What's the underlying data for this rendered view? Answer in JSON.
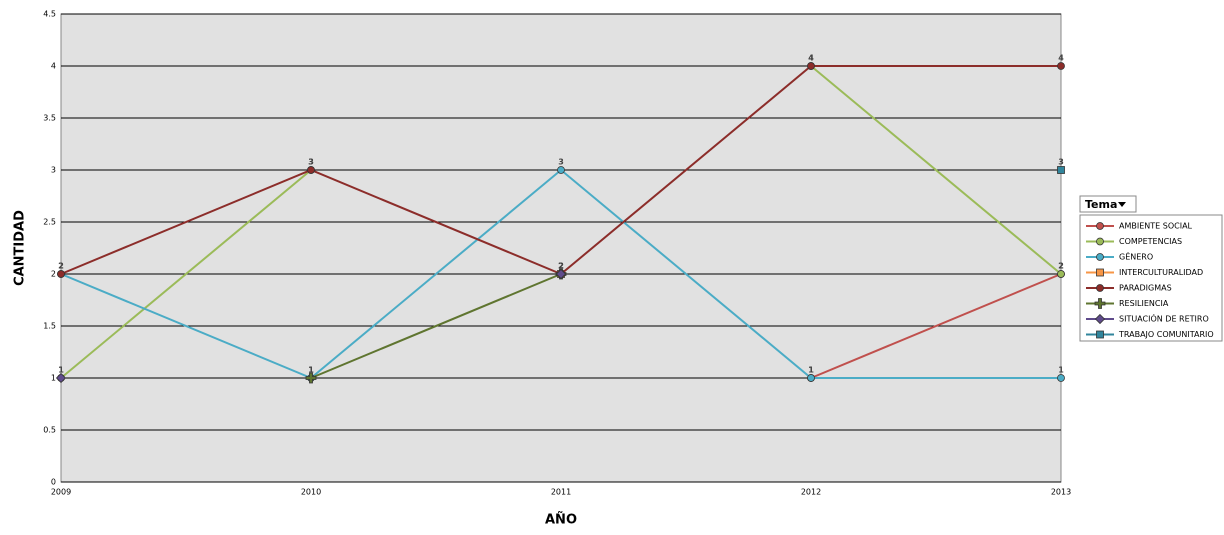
{
  "chart_data": {
    "type": "line",
    "x_label": "AÑO",
    "y_label": "CANTIDAD",
    "legend_title": "Tema",
    "categories": [
      "2009",
      "2010",
      "2011",
      "2012",
      "2013"
    ],
    "ylim": [
      0,
      4.5
    ],
    "yticks": [
      0,
      0.5,
      1,
      1.5,
      2,
      2.5,
      3,
      3.5,
      4,
      4.5
    ],
    "grid": true,
    "series": [
      {
        "name": "AMBIENTE SOCIAL",
        "color": "#c0504d",
        "marker": "circle",
        "values": [
          null,
          null,
          null,
          1,
          2
        ]
      },
      {
        "name": "COMPETENCIAS",
        "color": "#9bbb59",
        "marker": "circle",
        "values": [
          1,
          3,
          null,
          4,
          2
        ]
      },
      {
        "name": "GÉNERO",
        "color": "#4bacc6",
        "marker": "circle",
        "values": [
          2,
          1,
          3,
          1,
          1
        ]
      },
      {
        "name": "INTERCULTURALIDAD",
        "color": "#f79646",
        "marker": "square",
        "values": [
          null,
          null,
          2,
          null,
          null
        ]
      },
      {
        "name": "PARADIGMAS",
        "color": "#8c2d2a",
        "marker": "circle",
        "values": [
          2,
          3,
          2,
          4,
          4
        ]
      },
      {
        "name": "RESILIENCIA",
        "color": "#5f7530",
        "marker": "plus",
        "values": [
          null,
          1,
          2,
          null,
          null
        ]
      },
      {
        "name": "SITUACIÓN DE RETIRO",
        "color": "#5f4b8b",
        "marker": "diamond",
        "values": [
          1,
          null,
          2,
          null,
          null
        ]
      },
      {
        "name": "TRABAJO COMUNITARIO",
        "color": "#31859c",
        "marker": "square",
        "values": [
          null,
          null,
          null,
          null,
          3
        ]
      }
    ]
  }
}
